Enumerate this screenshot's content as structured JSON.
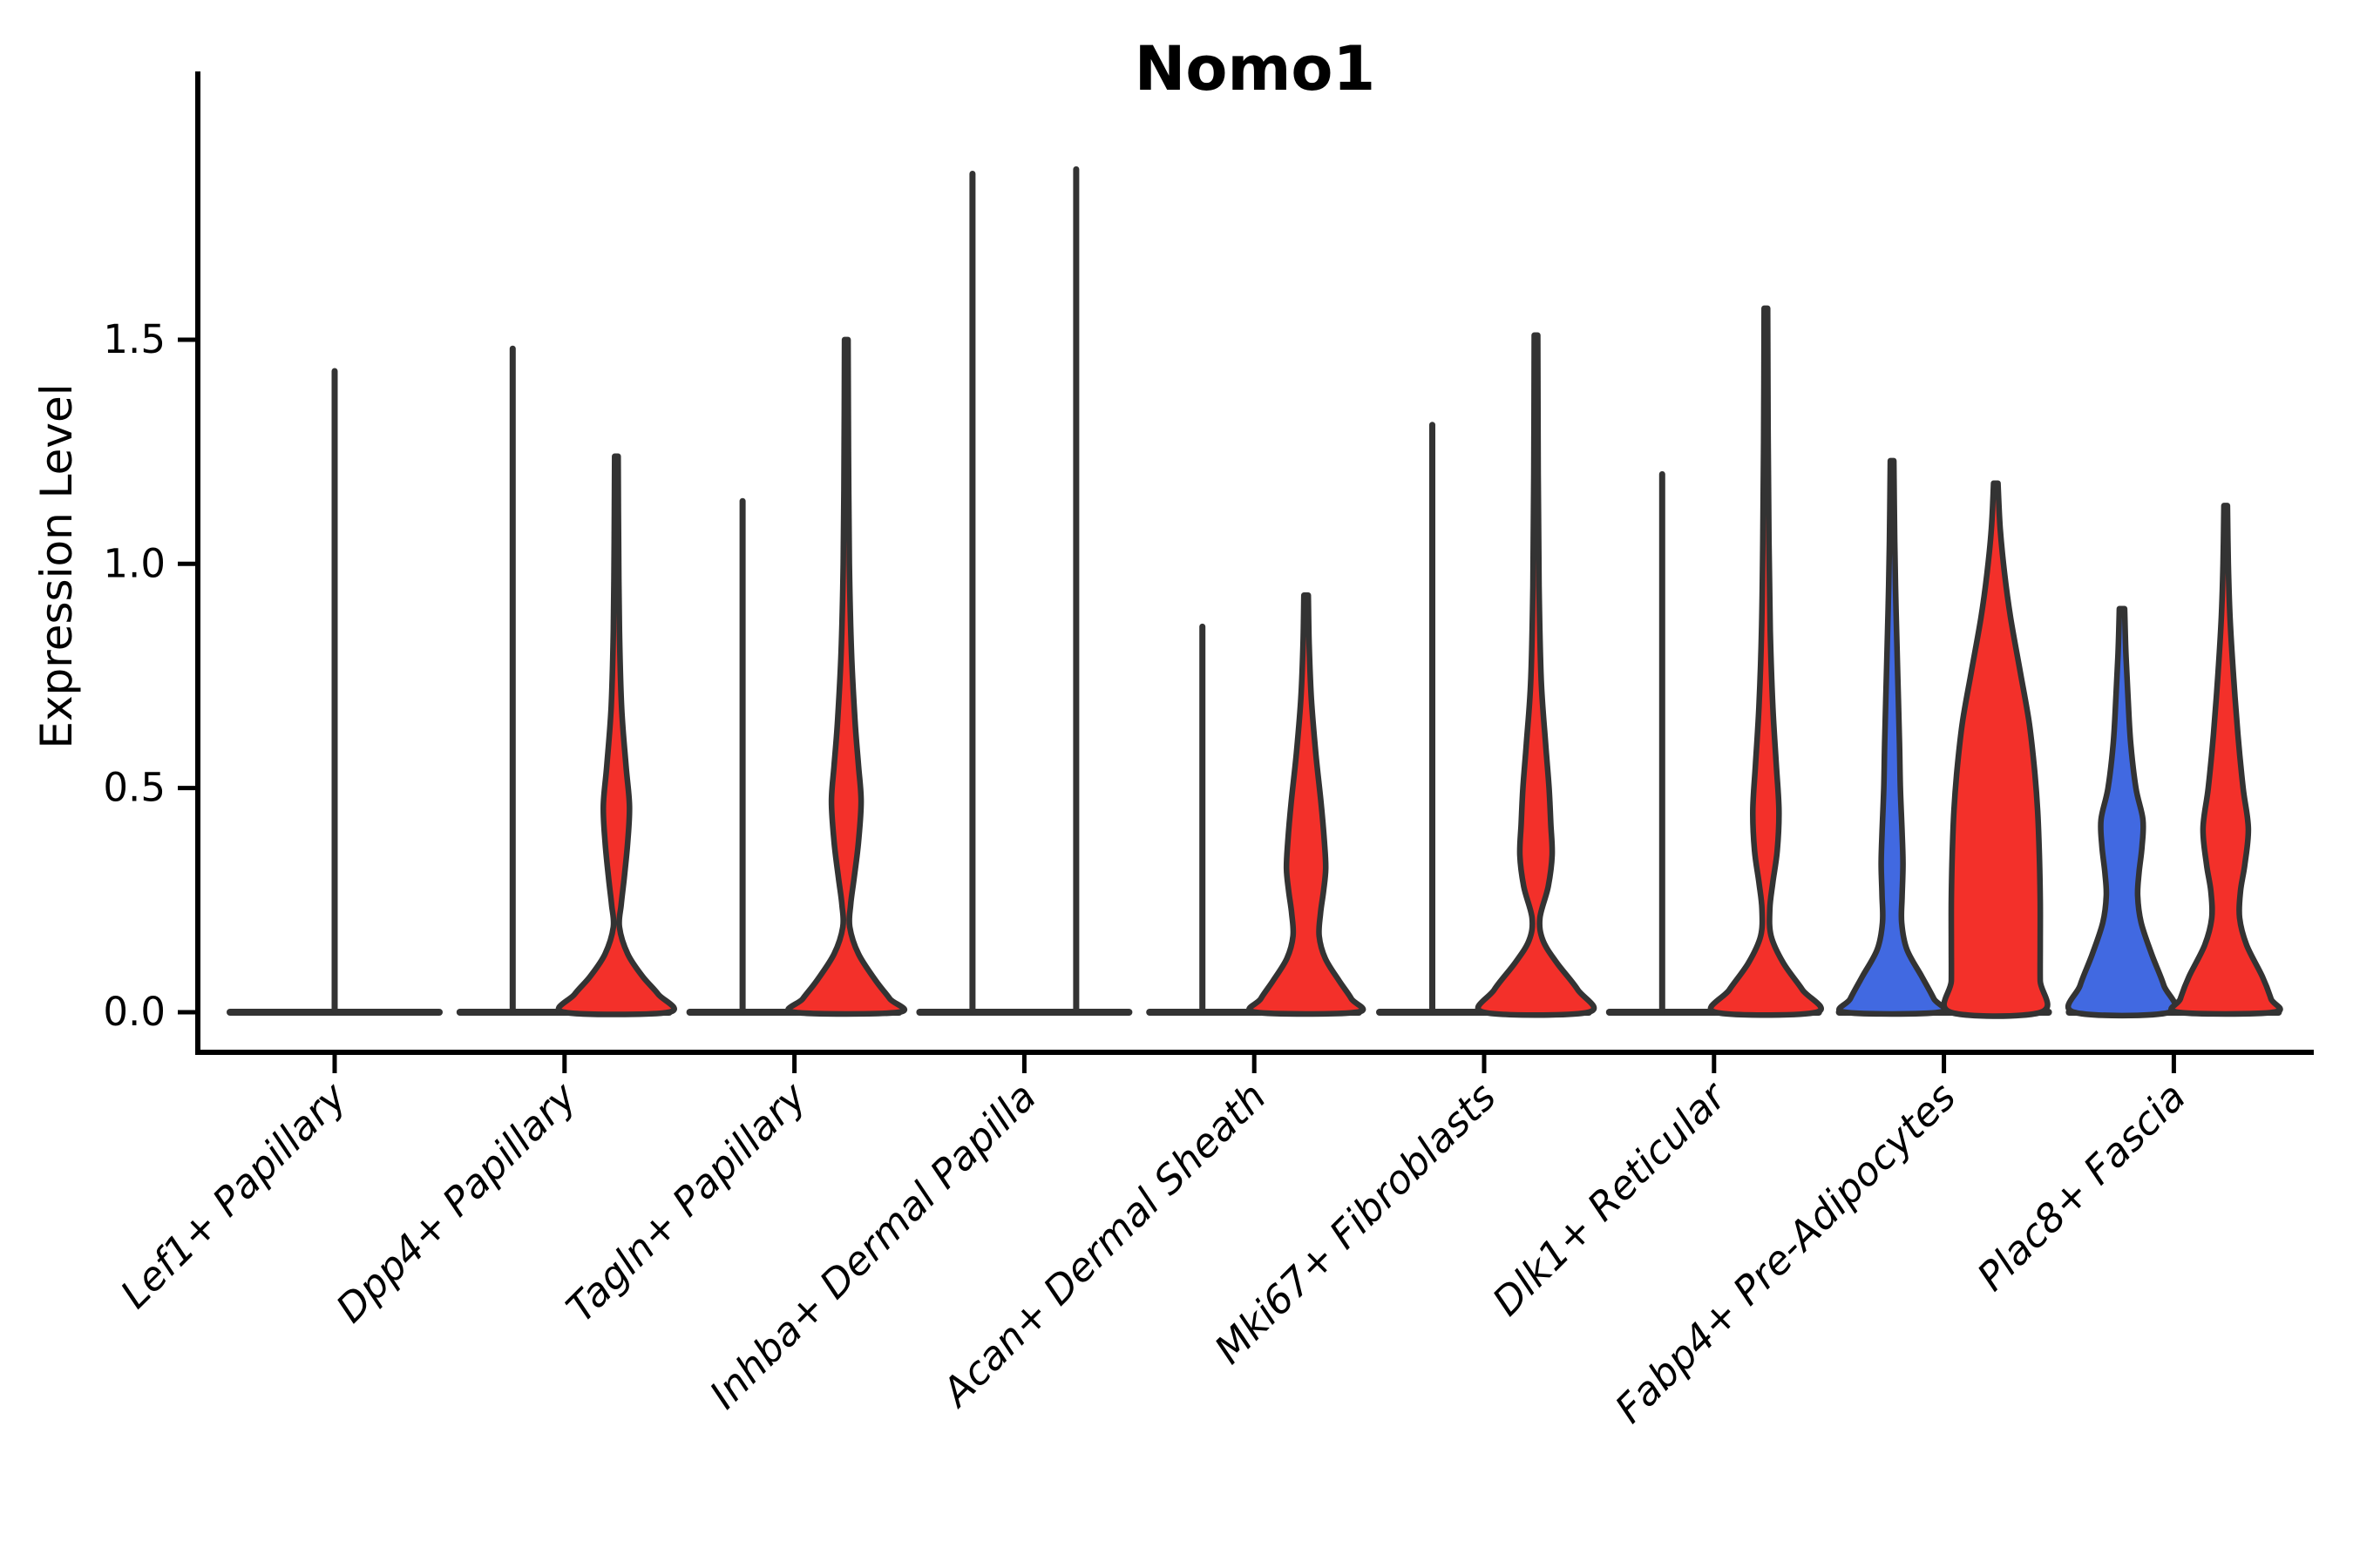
{
  "title": "Nomo1",
  "y_axis": {
    "label": "Expression Level",
    "ticks": [
      {
        "label": "0.0",
        "value": 0.0
      },
      {
        "label": "0.5",
        "value": 0.5
      },
      {
        "label": "1.0",
        "value": 1.0
      },
      {
        "label": "1.5",
        "value": 1.5
      }
    ]
  },
  "colors": {
    "red_fill": "#F3302A",
    "blue_fill": "#4169E1",
    "outline": "#333333",
    "axis": "#000000"
  },
  "chart_data": {
    "type": "violin",
    "title": "Nomo1",
    "xlabel": "",
    "ylabel": "Expression Level",
    "ylim": [
      -0.09,
      2.09
    ],
    "yticks": [
      0.0,
      0.5,
      1.0,
      1.5
    ],
    "grid": false,
    "legend": "none",
    "categories": [
      {
        "label": "Lef1+ Papillary",
        "violins": [
          {
            "side": "single",
            "shape": "spike",
            "color": "#F3302A",
            "max_value": 1.43
          }
        ]
      },
      {
        "label": "Dpp4+ Papillary",
        "violins": [
          {
            "side": "left",
            "shape": "spike",
            "color": "#4169E1",
            "max_value": 1.48
          },
          {
            "side": "right",
            "shape": "body",
            "color": "#F3302A",
            "max_value": 1.24,
            "profile": [
              [
                1.24,
                2
              ],
              [
                1.05,
                2.5
              ],
              [
                0.85,
                3.5
              ],
              [
                0.68,
                6
              ],
              [
                0.55,
                11
              ],
              [
                0.46,
                15
              ],
              [
                0.38,
                13
              ],
              [
                0.3,
                9
              ],
              [
                0.24,
                5.5
              ],
              [
                0.19,
                3.5
              ],
              [
                0.13,
                13
              ],
              [
                0.08,
                30
              ],
              [
                0.04,
                48
              ],
              [
                0,
                60
              ]
            ]
          }
        ]
      },
      {
        "label": "Tagln+ Papillary",
        "violins": [
          {
            "side": "left",
            "shape": "spike",
            "color": "#4169E1",
            "max_value": 1.14
          },
          {
            "side": "right",
            "shape": "body",
            "color": "#F3302A",
            "max_value": 1.5,
            "profile": [
              [
                1.5,
                2
              ],
              [
                1.25,
                2.5
              ],
              [
                1.0,
                3.5
              ],
              [
                0.8,
                6
              ],
              [
                0.65,
                10
              ],
              [
                0.55,
                14
              ],
              [
                0.47,
                17
              ],
              [
                0.38,
                14
              ],
              [
                0.3,
                9
              ],
              [
                0.24,
                5
              ],
              [
                0.19,
                4
              ],
              [
                0.13,
                14
              ],
              [
                0.07,
                34
              ],
              [
                0.03,
                50
              ],
              [
                0,
                60
              ]
            ]
          }
        ]
      },
      {
        "label": "Inhba+ Dermal Papilla",
        "violins": [
          {
            "side": "left",
            "shape": "spike",
            "color": "#4169E1",
            "max_value": 1.87
          },
          {
            "side": "right",
            "shape": "spike",
            "color": "#F3302A",
            "max_value": 1.88
          }
        ]
      },
      {
        "label": "Acan+ Dermal Sheath",
        "violins": [
          {
            "side": "left",
            "shape": "spike",
            "color": "#4169E1",
            "max_value": 0.86
          },
          {
            "side": "right",
            "shape": "body",
            "color": "#F3302A",
            "max_value": 0.93,
            "profile": [
              [
                0.93,
                2.5
              ],
              [
                0.82,
                3.5
              ],
              [
                0.7,
                6
              ],
              [
                0.58,
                11
              ],
              [
                0.47,
                17
              ],
              [
                0.38,
                21
              ],
              [
                0.32,
                22.5
              ],
              [
                0.27,
                20
              ],
              [
                0.22,
                16.5
              ],
              [
                0.17,
                15
              ],
              [
                0.12,
                22
              ],
              [
                0.07,
                38
              ],
              [
                0.03,
                52
              ],
              [
                0,
                58
              ]
            ]
          }
        ]
      },
      {
        "label": "Mki67+ Fibroblasts",
        "violins": [
          {
            "side": "left",
            "shape": "spike",
            "color": "#4169E1",
            "max_value": 1.31
          },
          {
            "side": "right",
            "shape": "body",
            "color": "#F3302A",
            "max_value": 1.51,
            "profile": [
              [
                1.51,
                2
              ],
              [
                1.2,
                2.5
              ],
              [
                0.95,
                3.5
              ],
              [
                0.74,
                6
              ],
              [
                0.6,
                11
              ],
              [
                0.5,
                15
              ],
              [
                0.42,
                17
              ],
              [
                0.35,
                18.5
              ],
              [
                0.28,
                14
              ],
              [
                0.21,
                4.5
              ],
              [
                0.16,
                8
              ],
              [
                0.11,
                24
              ],
              [
                0.05,
                48
              ],
              [
                0,
                60
              ]
            ]
          }
        ]
      },
      {
        "label": "Dlk1+ Reticular",
        "violins": [
          {
            "side": "left",
            "shape": "spike",
            "color": "#4169E1",
            "max_value": 1.2
          },
          {
            "side": "right",
            "shape": "body",
            "color": "#F3302A",
            "max_value": 1.57,
            "profile": [
              [
                1.57,
                2
              ],
              [
                1.3,
                2.5
              ],
              [
                1.05,
                3.5
              ],
              [
                0.85,
                5
              ],
              [
                0.68,
                8
              ],
              [
                0.55,
                12
              ],
              [
                0.45,
                15
              ],
              [
                0.36,
                13
              ],
              [
                0.29,
                8
              ],
              [
                0.23,
                4.5
              ],
              [
                0.17,
                6
              ],
              [
                0.11,
                20
              ],
              [
                0.05,
                42
              ],
              [
                0,
                58
              ]
            ]
          }
        ]
      },
      {
        "label": "Fabp4+ Pre-Adipocytes",
        "violins": [
          {
            "side": "left",
            "shape": "body",
            "color": "#4169E1",
            "max_value": 1.23,
            "profile": [
              [
                1.23,
                2
              ],
              [
                1.05,
                3
              ],
              [
                0.9,
                4.5
              ],
              [
                0.75,
                6.5
              ],
              [
                0.6,
                8.5
              ],
              [
                0.5,
                9.5
              ],
              [
                0.4,
                11.5
              ],
              [
                0.33,
                12.5
              ],
              [
                0.26,
                11.5
              ],
              [
                0.2,
                11
              ],
              [
                0.14,
                17
              ],
              [
                0.08,
                34
              ],
              [
                0.03,
                48
              ],
              [
                0,
                54
              ]
            ]
          },
          {
            "side": "right",
            "shape": "body",
            "color": "#F3302A",
            "max_value": 1.18,
            "profile": [
              [
                1.18,
                2.5
              ],
              [
                1.08,
                5
              ],
              [
                0.98,
                10
              ],
              [
                0.88,
                17
              ],
              [
                0.76,
                28
              ],
              [
                0.65,
                38
              ],
              [
                0.55,
                44
              ],
              [
                0.45,
                48
              ],
              [
                0.35,
                50
              ],
              [
                0.25,
                51
              ],
              [
                0.15,
                51
              ],
              [
                0.07,
                51
              ],
              [
                0,
                52
              ]
            ]
          }
        ]
      },
      {
        "label": "Plac8+ Fascia",
        "violins": [
          {
            "side": "left",
            "shape": "body",
            "color": "#4169E1",
            "max_value": 0.9,
            "profile": [
              [
                0.9,
                3
              ],
              [
                0.8,
                4.5
              ],
              [
                0.7,
                7
              ],
              [
                0.6,
                10
              ],
              [
                0.5,
                16
              ],
              [
                0.43,
                24
              ],
              [
                0.37,
                23
              ],
              [
                0.31,
                19.5
              ],
              [
                0.26,
                18
              ],
              [
                0.2,
                22
              ],
              [
                0.13,
                34
              ],
              [
                0.06,
                48
              ],
              [
                0,
                55
              ]
            ]
          },
          {
            "side": "right",
            "shape": "body",
            "color": "#F3302A",
            "max_value": 1.13,
            "profile": [
              [
                1.13,
                2
              ],
              [
                1.0,
                3
              ],
              [
                0.88,
                5
              ],
              [
                0.75,
                9
              ],
              [
                0.62,
                14
              ],
              [
                0.5,
                20
              ],
              [
                0.41,
                26
              ],
              [
                0.33,
                22
              ],
              [
                0.27,
                17
              ],
              [
                0.21,
                16
              ],
              [
                0.15,
                24
              ],
              [
                0.08,
                42
              ],
              [
                0.03,
                52
              ],
              [
                0,
                55
              ]
            ]
          }
        ]
      }
    ]
  }
}
